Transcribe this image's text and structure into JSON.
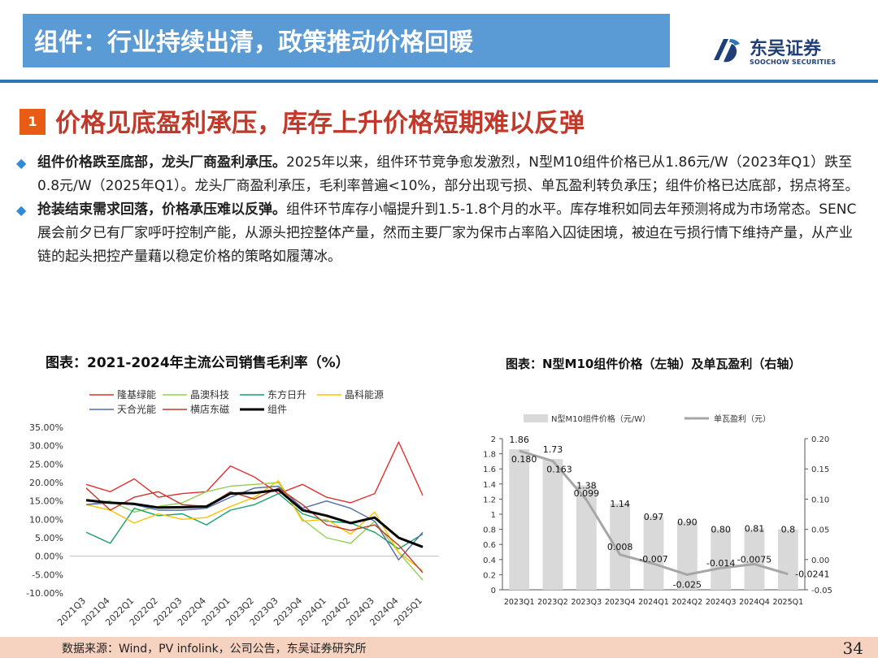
{
  "header": {
    "title": "组件：行业持续出清，政策推动价格回暖"
  },
  "logo": {
    "cn": "东吴证券",
    "en": "SOOCHOW SECURITIES"
  },
  "section": {
    "number": "1",
    "title": "价格见底盈利承压，库存上升价格短期难以反弹"
  },
  "paragraphs": [
    {
      "bold": "组件价格跌至底部，龙头厂商盈利承压。",
      "text": "2025年以来，组件环节竞争愈发激烈，N型M10组件价格已从1.86元/W（2023年Q1）跌至0.8元/W（2025年Q1）。龙头厂商盈利承压，毛利率普遍<10%，部分出现亏损、单瓦盈利转负承压；组件价格已达底部，拐点将至。"
    },
    {
      "bold": "抢装结束需求回落，价格承压难以反弹。",
      "text": "组件环节库存小幅提升到1.5-1.8个月的水平。库存堆积如同去年预测将成为市场常态。SENC展会前夕已有厂家呼吁控制产能，从源头把控整体产量，然而主要厂家为保市占率陷入囚徒困境，被迫在亏损行情下维持产量，从产业链的起头把控产量藉以稳定价格的策略如履薄冰。"
    }
  ],
  "chart1_title": "图表：2021-2024年主流公司销售毛利率（%）",
  "chart2_title": "图表：N型M10组件价格（左轴）及单瓦盈利（右轴）",
  "source": "数据来源：Wind，PV infolink，公司公告，东吴证券研究所",
  "page_number": "34",
  "chart_data": [
    {
      "type": "line",
      "title": "图表：2021-2024年主流公司销售毛利率（%）",
      "categories": [
        "2021Q3",
        "2021Q4",
        "2022Q1",
        "2022Q2",
        "2022Q3",
        "2022Q4",
        "2023Q1",
        "2023Q2",
        "2023Q3",
        "2023Q4",
        "2024Q1",
        "2024Q2",
        "2024Q3",
        "2024Q4",
        "2025Q1"
      ],
      "ylim": [
        -0.1,
        0.35
      ],
      "y_ticks": [
        -0.1,
        -0.05,
        0,
        0.05,
        0.1,
        0.15,
        0.2,
        0.25,
        0.3,
        0.35
      ],
      "y_tick_labels": [
        "-10.00%",
        "-5.00%",
        "0.00%",
        "5.00%",
        "10.00%",
        "15.00%",
        "20.00%",
        "25.00%",
        "30.00%",
        "35.00%"
      ],
      "legend_position": "top",
      "series": [
        {
          "name": "隆基绿能",
          "color": "#e03030",
          "width": 1.4,
          "values": [
            0.195,
            0.175,
            0.21,
            0.16,
            0.17,
            0.175,
            0.245,
            0.215,
            0.17,
            0.195,
            0.16,
            0.145,
            0.17,
            0.31,
            0.165
          ]
        },
        {
          "name": "晶澳科技",
          "color": "#92d050",
          "width": 1.4,
          "values": [
            0.14,
            0.15,
            0.12,
            0.135,
            0.145,
            0.175,
            0.19,
            0.195,
            0.2,
            0.1,
            0.05,
            0.035,
            0.095,
            0.01,
            -0.065
          ]
        },
        {
          "name": "东方日升",
          "color": "#17a06a",
          "width": 1.4,
          "values": [
            0.065,
            0.035,
            0.13,
            0.11,
            0.115,
            0.085,
            0.125,
            0.14,
            0.17,
            0.115,
            0.095,
            0.09,
            0.065,
            0.02,
            0.06
          ]
        },
        {
          "name": "晶科能源",
          "color": "#ffc000",
          "width": 1.4,
          "values": [
            0.14,
            0.125,
            0.09,
            0.115,
            0.1,
            0.105,
            0.135,
            0.16,
            0.205,
            0.095,
            0.1,
            0.06,
            0.12,
            0.01,
            -0.04
          ]
        },
        {
          "name": "天合光能",
          "color": "#4f6fa8",
          "width": 1.4,
          "values": [
            0.14,
            0.145,
            0.14,
            0.125,
            0.125,
            0.13,
            0.16,
            0.185,
            0.19,
            0.13,
            0.15,
            0.13,
            0.095,
            -0.01,
            0.065
          ]
        },
        {
          "name": "横店东磁",
          "color": "#c0392b",
          "width": 1.4,
          "values": [
            0.185,
            0.125,
            0.16,
            0.175,
            0.14,
            0.135,
            0.175,
            0.155,
            0.185,
            0.14,
            0.085,
            0.07,
            0.085,
            0.03,
            -0.045
          ]
        },
        {
          "name": "组件",
          "color": "#000000",
          "width": 3,
          "values": [
            0.152,
            0.145,
            0.142,
            0.132,
            0.133,
            0.135,
            0.17,
            0.172,
            0.18,
            0.125,
            0.11,
            0.09,
            0.105,
            0.05,
            0.025
          ]
        }
      ]
    },
    {
      "type": "bar",
      "title": "图表：N型M10组件价格（左轴）及单瓦盈利（右轴）",
      "categories": [
        "2023Q1",
        "2023Q2",
        "2023Q3",
        "2023Q4",
        "2024Q1",
        "2024Q2",
        "2024Q3",
        "2024Q4",
        "2025Q1"
      ],
      "legend_position": "top",
      "series": [
        {
          "name": "N型M10组件价格（元/W）",
          "type": "bar",
          "axis": "left",
          "color": "#d9d9d9",
          "values": [
            1.86,
            1.73,
            1.38,
            1.14,
            0.97,
            0.9,
            0.8,
            0.81,
            0.8
          ],
          "labels": [
            "1.86",
            "1.73",
            "1.38",
            "1.14",
            "0.97",
            "0.90",
            "0.80",
            "0.81",
            "0.8"
          ]
        },
        {
          "name": "单瓦盈利（元）",
          "type": "line",
          "axis": "right",
          "color": "#a6a6a6",
          "values": [
            0.18,
            0.163,
            0.099,
            0.008,
            -0.007,
            -0.025,
            -0.014,
            -0.0075,
            -0.0241
          ],
          "labels": [
            "0.180",
            "0.163",
            "0.099",
            "0.008",
            "-0.007",
            "-0.025",
            "-0.014",
            "-0.0075",
            "-0.0241"
          ]
        }
      ],
      "left_ylim": [
        0,
        2
      ],
      "left_ticks": [
        "0",
        "0.2",
        "0.4",
        "0.6",
        "0.8",
        "1",
        "1.2",
        "1.4",
        "1.6",
        "1.8",
        "2"
      ],
      "right_ylim": [
        -0.05,
        0.2
      ],
      "right_ticks": [
        "-0.05",
        "0.00",
        "0.05",
        "0.10",
        "0.15",
        "0.20"
      ]
    }
  ]
}
